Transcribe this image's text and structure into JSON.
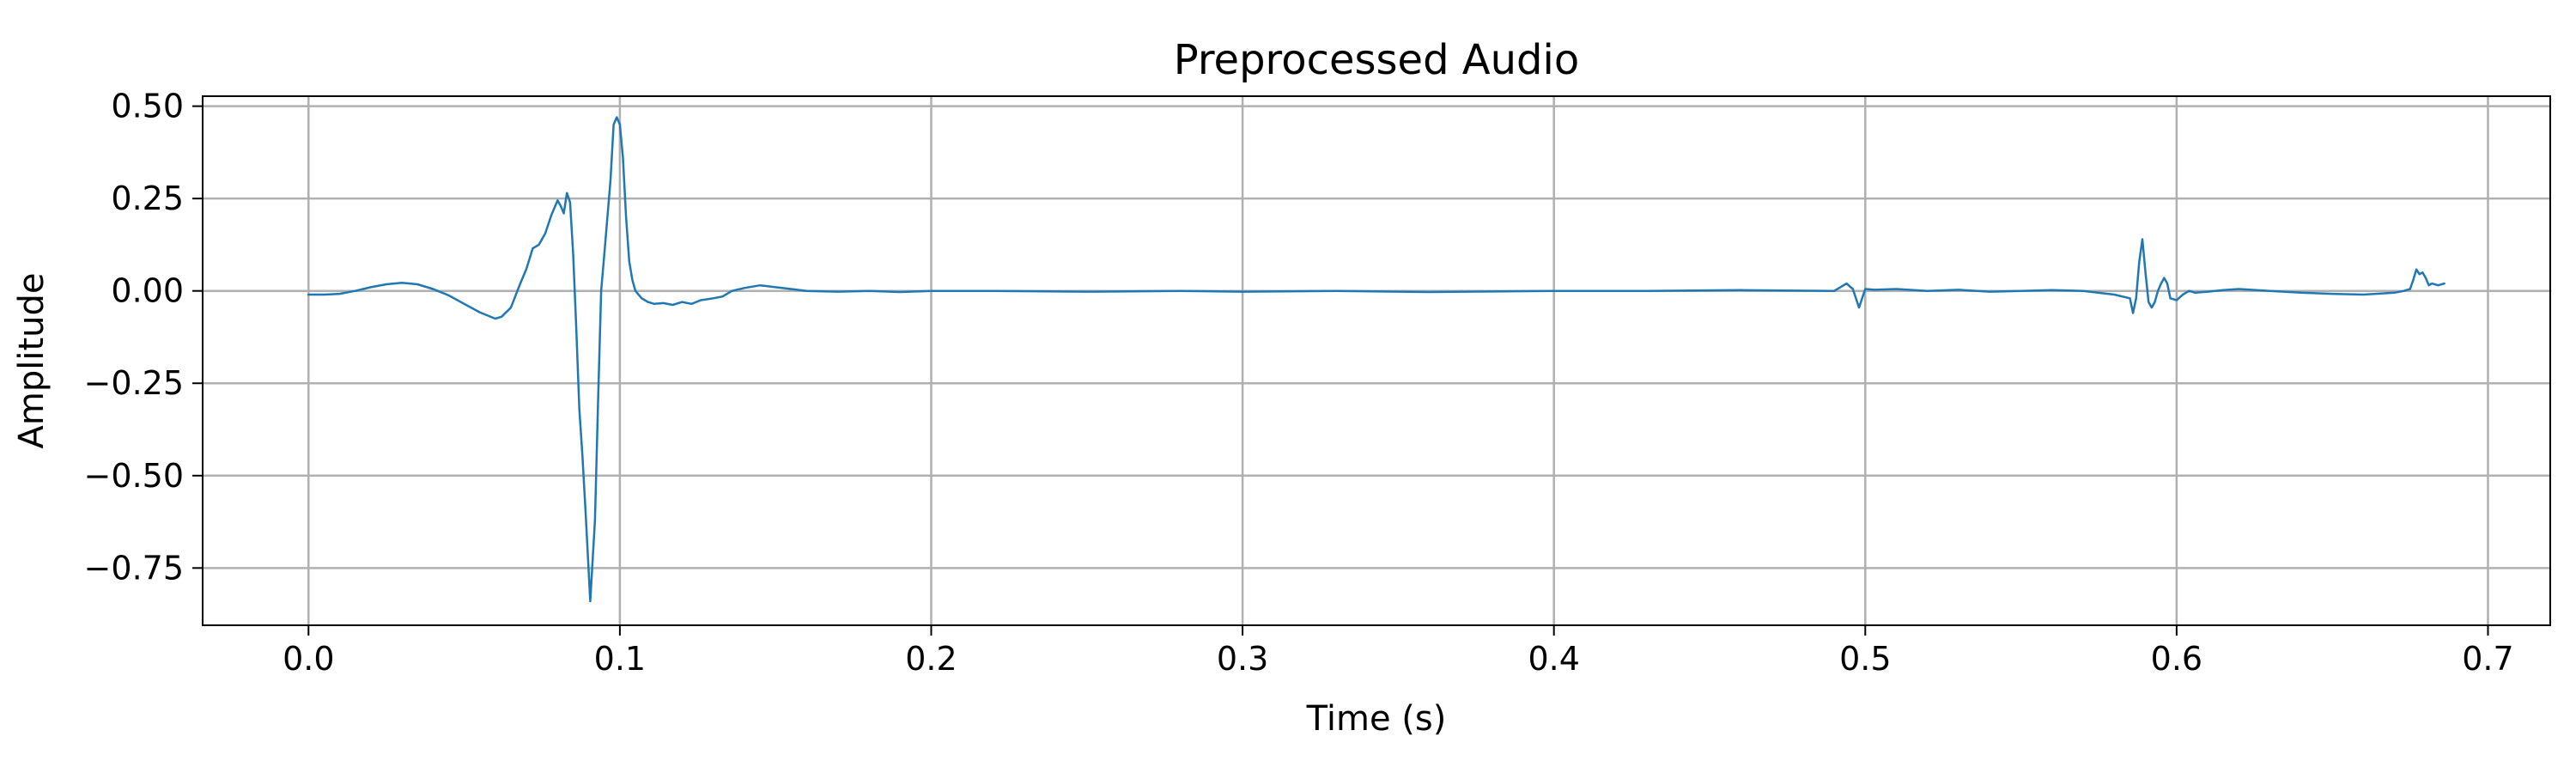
{
  "chart_data": {
    "type": "line",
    "title": "Preprocessed Audio",
    "xlabel": "Time (s)",
    "ylabel": "Amplitude",
    "xlim": [
      -0.034,
      0.72
    ],
    "ylim": [
      -0.905,
      0.527
    ],
    "xticks": [
      0.0,
      0.1,
      0.2,
      0.3,
      0.4,
      0.5,
      0.6,
      0.7
    ],
    "xtick_labels": [
      "0.0",
      "0.1",
      "0.2",
      "0.3",
      "0.4",
      "0.5",
      "0.6",
      "0.7"
    ],
    "yticks": [
      0.5,
      0.25,
      0.0,
      -0.25,
      -0.5,
      -0.75
    ],
    "ytick_labels": [
      "0.50",
      "0.25",
      "0.00",
      "−0.25",
      "−0.50",
      "−0.75"
    ],
    "grid": true,
    "legend": "none",
    "color": "#1f77b4",
    "series": [
      {
        "x": [
          0.0,
          0.005,
          0.01,
          0.015,
          0.02,
          0.025,
          0.03,
          0.035,
          0.04,
          0.045,
          0.05,
          0.055,
          0.06,
          0.062,
          0.065,
          0.068,
          0.07,
          0.072,
          0.074,
          0.076,
          0.078,
          0.08,
          0.081,
          0.082,
          0.083,
          0.084,
          0.085,
          0.086,
          0.087,
          0.088,
          0.089,
          0.0905,
          0.092,
          0.093,
          0.094,
          0.095,
          0.096,
          0.097,
          0.098,
          0.099,
          0.1,
          0.101,
          0.102,
          0.103,
          0.104,
          0.105,
          0.107,
          0.109,
          0.111,
          0.114,
          0.117,
          0.12,
          0.123,
          0.126,
          0.13,
          0.133,
          0.136,
          0.14,
          0.145,
          0.15,
          0.155,
          0.16,
          0.17,
          0.18,
          0.19,
          0.2,
          0.22,
          0.25,
          0.28,
          0.3,
          0.33,
          0.36,
          0.4,
          0.43,
          0.46,
          0.49,
          0.492,
          0.494,
          0.496,
          0.498,
          0.5,
          0.503,
          0.51,
          0.52,
          0.53,
          0.54,
          0.55,
          0.56,
          0.57,
          0.58,
          0.585,
          0.586,
          0.587,
          0.588,
          0.589,
          0.59,
          0.591,
          0.592,
          0.593,
          0.594,
          0.595,
          0.596,
          0.597,
          0.598,
          0.6,
          0.602,
          0.604,
          0.606,
          0.61,
          0.615,
          0.62,
          0.63,
          0.64,
          0.65,
          0.66,
          0.67,
          0.673,
          0.675,
          0.676,
          0.677,
          0.678,
          0.679,
          0.68,
          0.681,
          0.682,
          0.684,
          0.686
        ],
        "y": [
          -0.01,
          -0.01,
          -0.008,
          0.0,
          0.01,
          0.018,
          0.022,
          0.018,
          0.005,
          -0.012,
          -0.035,
          -0.058,
          -0.075,
          -0.07,
          -0.045,
          0.02,
          0.06,
          0.115,
          0.125,
          0.155,
          0.205,
          0.245,
          0.23,
          0.21,
          0.265,
          0.24,
          0.1,
          -0.1,
          -0.32,
          -0.45,
          -0.6,
          -0.84,
          -0.62,
          -0.3,
          0.0,
          0.1,
          0.2,
          0.3,
          0.45,
          0.47,
          0.45,
          0.36,
          0.2,
          0.08,
          0.03,
          0.0,
          -0.02,
          -0.03,
          -0.035,
          -0.033,
          -0.038,
          -0.03,
          -0.035,
          -0.025,
          -0.02,
          -0.015,
          0.0,
          0.008,
          0.015,
          0.01,
          0.005,
          0.0,
          -0.002,
          0.0,
          -0.003,
          0.0,
          0.0,
          -0.002,
          0.0,
          -0.002,
          0.0,
          -0.003,
          0.0,
          0.0,
          0.002,
          0.0,
          0.01,
          0.02,
          0.005,
          -0.045,
          0.005,
          0.003,
          0.005,
          0.0,
          0.003,
          -0.002,
          0.0,
          0.002,
          0.0,
          -0.01,
          -0.02,
          -0.06,
          -0.02,
          0.08,
          0.14,
          0.05,
          -0.03,
          -0.045,
          -0.03,
          0.0,
          0.02,
          0.035,
          0.02,
          -0.02,
          -0.025,
          -0.01,
          0.0,
          -0.005,
          -0.002,
          0.002,
          0.005,
          0.0,
          -0.005,
          -0.008,
          -0.01,
          -0.005,
          0.0,
          0.005,
          0.03,
          0.058,
          0.045,
          0.05,
          0.035,
          0.015,
          0.02,
          0.015,
          0.02
        ]
      }
    ]
  }
}
